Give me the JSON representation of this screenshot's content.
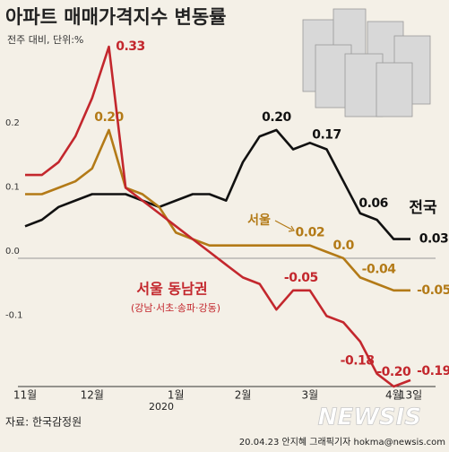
{
  "chart_data": {
    "type": "line",
    "title": "아파트 매매가격지수 변동률",
    "subtitle": "전주 대비, 단위:%",
    "categories": [
      "11월",
      null,
      null,
      null,
      "12월",
      null,
      null,
      null,
      null,
      "1월",
      null,
      null,
      null,
      "2월",
      null,
      null,
      null,
      "3월",
      null,
      null,
      null,
      null,
      "4월",
      "13일"
    ],
    "x_sublabel": "2020",
    "series": [
      {
        "name": "전국",
        "color": "#111111",
        "values": [
          0.05,
          0.06,
          0.08,
          0.09,
          0.1,
          0.1,
          0.1,
          0.09,
          0.08,
          0.09,
          0.1,
          0.1,
          0.09,
          0.15,
          0.19,
          0.2,
          0.17,
          0.18,
          0.17,
          0.12,
          0.07,
          0.06,
          0.03,
          0.03
        ],
        "value_labels": [
          null,
          null,
          null,
          null,
          null,
          null,
          null,
          null,
          null,
          null,
          null,
          null,
          null,
          null,
          null,
          "0.20",
          null,
          null,
          "0.17",
          null,
          null,
          "0.06",
          null,
          "0.03"
        ]
      },
      {
        "name": "서울",
        "color": "#b37a17",
        "values": [
          0.1,
          0.1,
          0.11,
          0.12,
          0.14,
          0.2,
          0.11,
          0.1,
          0.08,
          0.04,
          0.03,
          0.02,
          0.02,
          0.02,
          0.02,
          0.02,
          0.02,
          0.02,
          0.01,
          0.0,
          -0.03,
          -0.04,
          -0.05,
          -0.05
        ],
        "value_labels": [
          null,
          null,
          null,
          null,
          null,
          "0.20",
          null,
          null,
          null,
          null,
          null,
          null,
          null,
          null,
          null,
          null,
          null,
          "0.02",
          null,
          "0.0",
          null,
          "-0.04",
          null,
          "-0.05"
        ]
      },
      {
        "name": "서울 동남권",
        "color": "#c3272d",
        "values": [
          0.13,
          0.13,
          0.15,
          0.19,
          0.25,
          0.33,
          0.11,
          0.09,
          0.07,
          0.05,
          0.03,
          0.01,
          -0.01,
          -0.03,
          -0.04,
          -0.08,
          -0.05,
          -0.05,
          -0.09,
          -0.1,
          -0.13,
          -0.18,
          -0.2,
          -0.19
        ],
        "value_labels": [
          null,
          null,
          null,
          null,
          null,
          "0.33",
          null,
          null,
          null,
          null,
          null,
          null,
          null,
          null,
          null,
          null,
          null,
          "-0.05",
          null,
          null,
          null,
          "-0.18",
          "-0.20",
          "-0.19"
        ]
      }
    ],
    "series_note": "(강남·서초·송파·강동)",
    "ylim": [
      -0.2,
      0.35
    ],
    "yticks": [
      0.2,
      0.1,
      {
        "value": 0,
        "label": "0.0"
      },
      -0.1
    ],
    "source": "자료: 한국감정원",
    "credit": "20.04.23 안지혜 그래픽기자 hokma@newsis.com",
    "watermark": "NEWSIS"
  }
}
